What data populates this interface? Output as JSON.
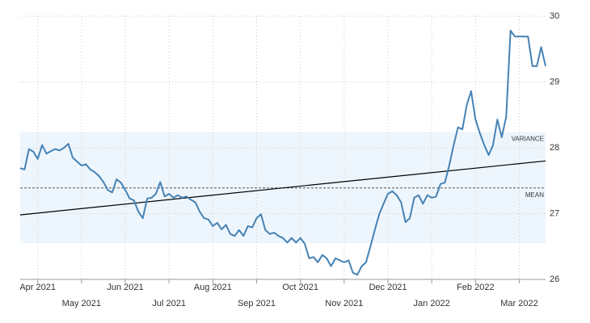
{
  "chart_data": {
    "type": "line",
    "color": "#4682b4",
    "x": [
      -0.4,
      -0.3,
      -0.2,
      -0.1,
      0,
      0.1,
      0.2,
      0.3,
      0.4,
      0.5,
      0.6,
      0.7,
      0.8,
      0.9,
      1,
      1.1,
      1.2,
      1.3,
      1.4,
      1.5,
      1.6,
      1.7,
      1.8,
      1.9,
      2,
      2.1,
      2.2,
      2.3,
      2.4,
      2.5,
      2.6,
      2.7,
      2.8,
      2.9,
      3,
      3.1,
      3.2,
      3.3,
      3.4,
      3.5,
      3.6,
      3.7,
      3.8,
      3.9,
      4,
      4.1,
      4.2,
      4.3,
      4.4,
      4.5,
      4.6,
      4.7,
      4.8,
      4.9,
      5,
      5.1,
      5.2,
      5.3,
      5.4,
      5.5,
      5.6,
      5.7,
      5.8,
      5.9,
      6,
      6.1,
      6.2,
      6.3,
      6.4,
      6.5,
      6.6,
      6.7,
      6.8,
      6.9,
      7,
      7.1,
      7.2,
      7.3,
      7.4,
      7.5,
      7.6,
      7.7,
      7.8,
      7.9,
      8,
      8.1,
      8.2,
      8.3,
      8.4,
      8.5,
      8.6,
      8.7,
      8.8,
      8.9,
      9,
      9.1,
      9.2,
      9.3,
      9.4,
      9.5,
      9.6,
      9.7,
      9.8,
      9.9,
      10,
      10.1,
      10.2,
      10.3,
      10.4,
      10.5,
      10.6,
      10.7,
      10.8,
      10.9,
      11,
      11.1,
      11.2,
      11.3,
      11.4,
      11.5,
      11.6
    ],
    "values": [
      27.69,
      27.67,
      27.98,
      27.94,
      27.83,
      28.04,
      27.91,
      27.95,
      27.98,
      27.96,
      28.0,
      28.06,
      27.85,
      27.79,
      27.73,
      27.75,
      27.67,
      27.63,
      27.57,
      27.48,
      27.36,
      27.32,
      27.52,
      27.47,
      27.36,
      27.23,
      27.2,
      27.03,
      26.93,
      27.23,
      27.24,
      27.3,
      27.48,
      27.26,
      27.3,
      27.24,
      27.28,
      27.24,
      27.26,
      27.21,
      27.17,
      27.03,
      26.93,
      26.91,
      26.81,
      26.86,
      26.76,
      26.83,
      26.69,
      26.66,
      26.75,
      26.66,
      26.81,
      26.79,
      26.93,
      26.99,
      26.75,
      26.69,
      26.71,
      26.66,
      26.63,
      26.56,
      26.63,
      26.56,
      26.63,
      26.54,
      26.32,
      26.34,
      26.26,
      26.37,
      26.32,
      26.2,
      26.32,
      26.29,
      26.26,
      26.29,
      26.1,
      26.07,
      26.2,
      26.26,
      26.5,
      26.75,
      26.99,
      27.15,
      27.3,
      27.34,
      27.28,
      27.17,
      26.87,
      26.93,
      27.24,
      27.28,
      27.15,
      27.28,
      27.24,
      27.26,
      27.45,
      27.47,
      27.73,
      28.04,
      28.31,
      28.28,
      28.65,
      28.86,
      28.43,
      28.22,
      28.04,
      27.89,
      28.04,
      28.43,
      28.16,
      28.47,
      29.78,
      29.69,
      29.69,
      29.69,
      29.69,
      29.24,
      29.24,
      29.53,
      29.24
    ],
    "trend": {
      "x": [
        -0.4,
        11.6
      ],
      "values": [
        26.98,
        27.8
      ],
      "color": "#000000"
    },
    "mean": {
      "label": "MEAN",
      "value": 27.39
    },
    "variance": {
      "label": "VARIANCE",
      "range": [
        26.55,
        28.24
      ],
      "color": "#eef6fd"
    },
    "xlim": [
      -0.4,
      11.6
    ],
    "xticks": [
      {
        "value": 0,
        "label": "Apr 2021"
      },
      {
        "value": 1,
        "label": "May 2021"
      },
      {
        "value": 2,
        "label": "Jun 2021"
      },
      {
        "value": 3,
        "label": "Jul 2021"
      },
      {
        "value": 4,
        "label": "Aug 2021"
      },
      {
        "value": 5,
        "label": "Sep 2021"
      },
      {
        "value": 6,
        "label": "Oct 2021"
      },
      {
        "value": 7,
        "label": "Nov 2021"
      },
      {
        "value": 8,
        "label": "Dec 2021"
      },
      {
        "value": 9,
        "label": "Jan 2022"
      },
      {
        "value": 10,
        "label": "Feb 2022"
      },
      {
        "value": 11,
        "label": "Mar 2022"
      }
    ],
    "ylim": [
      26,
      30
    ],
    "yticks": [
      26,
      27,
      28,
      29,
      30
    ],
    "grid": true
  }
}
